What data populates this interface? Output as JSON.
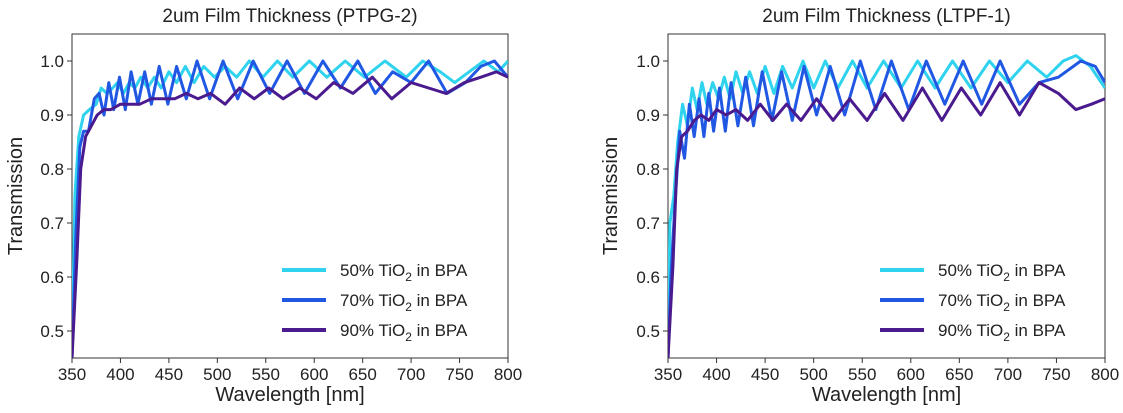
{
  "chart_data": [
    {
      "type": "line",
      "title": "2um Film Thickness (PTPG-2)",
      "xlabel": "Wavelength [nm]",
      "ylabel": "Transmission",
      "xlim": [
        350,
        800
      ],
      "ylim": [
        0.45,
        1.05
      ],
      "xticks": [
        "350",
        "400",
        "450",
        "500",
        "550",
        "600",
        "650",
        "700",
        "750",
        "800"
      ],
      "yticks": [
        "0.5",
        "0.6",
        "0.7",
        "0.8",
        "0.9",
        "1.0"
      ],
      "grid": false,
      "legend_position": "lower-right",
      "series": [
        {
          "name": "50% TiO2 in BPA",
          "legend": {
            "pre": "50% TiO",
            "sub": "2",
            "post": " in BPA"
          },
          "color": "#2fd3ee",
          "points": [
            [
              350,
              0.45
            ],
            [
              353,
              0.75
            ],
            [
              357,
              0.86
            ],
            [
              362,
              0.9
            ],
            [
              368,
              0.91
            ],
            [
              375,
              0.92
            ],
            [
              380,
              0.95
            ],
            [
              386,
              0.94
            ],
            [
              392,
              0.95
            ],
            [
              397,
              0.96
            ],
            [
              403,
              0.94
            ],
            [
              409,
              0.96
            ],
            [
              415,
              0.95
            ],
            [
              421,
              0.97
            ],
            [
              428,
              0.95
            ],
            [
              435,
              0.97
            ],
            [
              442,
              0.95
            ],
            [
              450,
              0.98
            ],
            [
              458,
              0.96
            ],
            [
              467,
              0.99
            ],
            [
              476,
              0.96
            ],
            [
              486,
              0.99
            ],
            [
              497,
              0.97
            ],
            [
              508,
              0.99
            ],
            [
              520,
              0.97
            ],
            [
              533,
              1.0
            ],
            [
              547,
              0.97
            ],
            [
              562,
              1.0
            ],
            [
              578,
              0.97
            ],
            [
              595,
              1.0
            ],
            [
              613,
              0.97
            ],
            [
              632,
              1.0
            ],
            [
              652,
              0.97
            ],
            [
              673,
              1.0
            ],
            [
              695,
              0.97
            ],
            [
              712,
              1.0
            ],
            [
              730,
              0.98
            ],
            [
              745,
              0.96
            ],
            [
              760,
              0.98
            ],
            [
              775,
              1.0
            ],
            [
              790,
              0.98
            ],
            [
              800,
              1.0
            ]
          ]
        },
        {
          "name": "70% TiO2 in BPA",
          "legend": {
            "pre": "70% TiO",
            "sub": "2",
            "post": " in BPA"
          },
          "color": "#2158e3",
          "points": [
            [
              350,
              0.45
            ],
            [
              354,
              0.68
            ],
            [
              358,
              0.84
            ],
            [
              362,
              0.87
            ],
            [
              367,
              0.87
            ],
            [
              373,
              0.93
            ],
            [
              378,
              0.94
            ],
            [
              383,
              0.9
            ],
            [
              388,
              0.96
            ],
            [
              393,
              0.91
            ],
            [
              399,
              0.97
            ],
            [
              405,
              0.91
            ],
            [
              411,
              0.98
            ],
            [
              418,
              0.92
            ],
            [
              425,
              0.98
            ],
            [
              432,
              0.92
            ],
            [
              440,
              0.99
            ],
            [
              449,
              0.92
            ],
            [
              458,
              0.99
            ],
            [
              468,
              0.93
            ],
            [
              479,
              1.0
            ],
            [
              492,
              0.93
            ],
            [
              506,
              1.0
            ],
            [
              521,
              0.93
            ],
            [
              537,
              1.0
            ],
            [
              554,
              0.94
            ],
            [
              572,
              1.0
            ],
            [
              590,
              0.94
            ],
            [
              609,
              1.0
            ],
            [
              627,
              0.95
            ],
            [
              645,
              1.0
            ],
            [
              663,
              0.94
            ],
            [
              681,
              0.98
            ],
            [
              700,
              0.96
            ],
            [
              718,
              1.0
            ],
            [
              737,
              0.94
            ],
            [
              756,
              0.96
            ],
            [
              772,
              0.99
            ],
            [
              786,
              1.0
            ],
            [
              800,
              0.97
            ]
          ]
        },
        {
          "name": "90% TiO2 in BPA",
          "legend": {
            "pre": "90% TiO",
            "sub": "2",
            "post": " in BPA"
          },
          "color": "#4a1a8f",
          "points": [
            [
              350,
              0.45
            ],
            [
              355,
              0.63
            ],
            [
              359,
              0.8
            ],
            [
              364,
              0.86
            ],
            [
              370,
              0.88
            ],
            [
              376,
              0.9
            ],
            [
              383,
              0.91
            ],
            [
              390,
              0.91
            ],
            [
              400,
              0.92
            ],
            [
              410,
              0.92
            ],
            [
              420,
              0.92
            ],
            [
              432,
              0.93
            ],
            [
              444,
              0.93
            ],
            [
              456,
              0.93
            ],
            [
              468,
              0.94
            ],
            [
              480,
              0.93
            ],
            [
              493,
              0.94
            ],
            [
              508,
              0.92
            ],
            [
              523,
              0.95
            ],
            [
              538,
              0.93
            ],
            [
              553,
              0.95
            ],
            [
              568,
              0.93
            ],
            [
              585,
              0.95
            ],
            [
              602,
              0.93
            ],
            [
              620,
              0.96
            ],
            [
              640,
              0.94
            ],
            [
              660,
              0.97
            ],
            [
              680,
              0.93
            ],
            [
              700,
              0.96
            ],
            [
              718,
              0.95
            ],
            [
              736,
              0.94
            ],
            [
              755,
              0.96
            ],
            [
              772,
              0.97
            ],
            [
              788,
              0.98
            ],
            [
              800,
              0.97
            ]
          ]
        }
      ]
    },
    {
      "type": "line",
      "title": "2um Film Thickness (LTPF-1)",
      "xlabel": "Wavelength [nm]",
      "ylabel": "Transmission",
      "xlim": [
        350,
        800
      ],
      "ylim": [
        0.45,
        1.05
      ],
      "xticks": [
        "350",
        "400",
        "450",
        "500",
        "550",
        "600",
        "650",
        "700",
        "750",
        "800"
      ],
      "yticks": [
        "0.5",
        "0.6",
        "0.7",
        "0.8",
        "0.9",
        "1.0"
      ],
      "grid": false,
      "legend_position": "lower-right",
      "series": [
        {
          "name": "50% TiO2 in BPA",
          "legend": {
            "pre": "50% TiO",
            "sub": "2",
            "post": " in BPA"
          },
          "color": "#2fd3ee",
          "points": [
            [
              350,
              0.45
            ],
            [
              352,
              0.7
            ],
            [
              356,
              0.75
            ],
            [
              360,
              0.85
            ],
            [
              365,
              0.92
            ],
            [
              370,
              0.88
            ],
            [
              375,
              0.95
            ],
            [
              380,
              0.91
            ],
            [
              385,
              0.96
            ],
            [
              390,
              0.92
            ],
            [
              396,
              0.96
            ],
            [
              402,
              0.93
            ],
            [
              408,
              0.97
            ],
            [
              414,
              0.93
            ],
            [
              420,
              0.98
            ],
            [
              427,
              0.94
            ],
            [
              434,
              0.98
            ],
            [
              442,
              0.94
            ],
            [
              450,
              0.99
            ],
            [
              459,
              0.94
            ],
            [
              468,
              0.99
            ],
            [
              478,
              0.95
            ],
            [
              489,
              1.0
            ],
            [
              500,
              0.95
            ],
            [
              512,
              1.0
            ],
            [
              525,
              0.95
            ],
            [
              540,
              1.0
            ],
            [
              555,
              0.95
            ],
            [
              572,
              1.0
            ],
            [
              590,
              0.95
            ],
            [
              607,
              1.0
            ],
            [
              625,
              0.95
            ],
            [
              643,
              1.0
            ],
            [
              662,
              0.95
            ],
            [
              681,
              1.0
            ],
            [
              700,
              0.96
            ],
            [
              720,
              1.0
            ],
            [
              740,
              0.97
            ],
            [
              757,
              1.0
            ],
            [
              770,
              1.01
            ],
            [
              785,
              0.99
            ],
            [
              800,
              0.95
            ]
          ]
        },
        {
          "name": "70% TiO2 in BPA",
          "legend": {
            "pre": "70% TiO",
            "sub": "2",
            "post": " in BPA"
          },
          "color": "#2158e3",
          "points": [
            [
              350,
              0.45
            ],
            [
              353,
              0.6
            ],
            [
              357,
              0.73
            ],
            [
              362,
              0.87
            ],
            [
              367,
              0.82
            ],
            [
              372,
              0.92
            ],
            [
              377,
              0.86
            ],
            [
              382,
              0.93
            ],
            [
              387,
              0.86
            ],
            [
              392,
              0.94
            ],
            [
              397,
              0.87
            ],
            [
              403,
              0.95
            ],
            [
              409,
              0.87
            ],
            [
              415,
              0.96
            ],
            [
              422,
              0.88
            ],
            [
              430,
              0.97
            ],
            [
              438,
              0.88
            ],
            [
              447,
              0.98
            ],
            [
              457,
              0.89
            ],
            [
              467,
              0.98
            ],
            [
              478,
              0.89
            ],
            [
              490,
              0.99
            ],
            [
              503,
              0.9
            ],
            [
              517,
              0.99
            ],
            [
              532,
              0.9
            ],
            [
              548,
              1.0
            ],
            [
              564,
              0.91
            ],
            [
              580,
              1.0
            ],
            [
              598,
              0.91
            ],
            [
              616,
              1.0
            ],
            [
              635,
              0.92
            ],
            [
              654,
              1.0
            ],
            [
              673,
              0.92
            ],
            [
              692,
              1.0
            ],
            [
              712,
              0.92
            ],
            [
              732,
              0.96
            ],
            [
              752,
              0.97
            ],
            [
              775,
              1.0
            ],
            [
              790,
              0.99
            ],
            [
              800,
              0.96
            ]
          ]
        },
        {
          "name": "90% TiO2 in BPA",
          "legend": {
            "pre": "90% TiO",
            "sub": "2",
            "post": " in BPA"
          },
          "color": "#4a1a8f",
          "points": [
            [
              350,
              0.45
            ],
            [
              355,
              0.62
            ],
            [
              359,
              0.8
            ],
            [
              364,
              0.86
            ],
            [
              370,
              0.87
            ],
            [
              377,
              0.89
            ],
            [
              384,
              0.9
            ],
            [
              392,
              0.89
            ],
            [
              400,
              0.91
            ],
            [
              410,
              0.9
            ],
            [
              420,
              0.91
            ],
            [
              432,
              0.89
            ],
            [
              445,
              0.92
            ],
            [
              458,
              0.89
            ],
            [
              472,
              0.92
            ],
            [
              487,
              0.89
            ],
            [
              503,
              0.93
            ],
            [
              520,
              0.89
            ],
            [
              537,
              0.93
            ],
            [
              555,
              0.89
            ],
            [
              573,
              0.94
            ],
            [
              592,
              0.89
            ],
            [
              612,
              0.95
            ],
            [
              632,
              0.89
            ],
            [
              652,
              0.95
            ],
            [
              672,
              0.9
            ],
            [
              692,
              0.96
            ],
            [
              712,
              0.9
            ],
            [
              732,
              0.96
            ],
            [
              752,
              0.94
            ],
            [
              770,
              0.91
            ],
            [
              786,
              0.92
            ],
            [
              800,
              0.93
            ]
          ]
        }
      ]
    }
  ]
}
